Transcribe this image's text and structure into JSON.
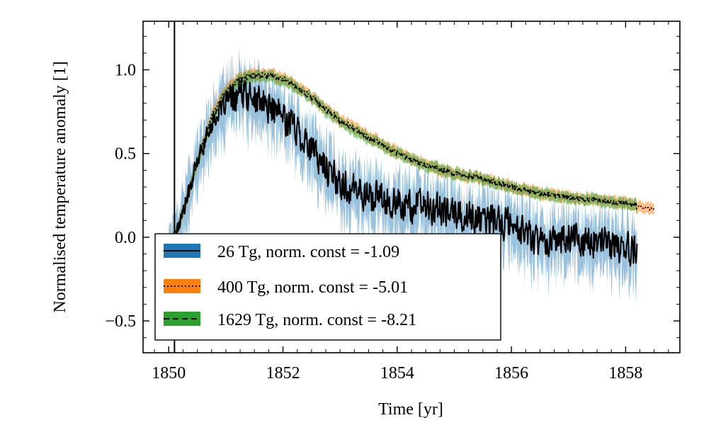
{
  "chart_data": {
    "type": "line",
    "title": "",
    "xlabel": "Time [yr]",
    "ylabel": "Normalised temperature anomaly [1]",
    "xlim": [
      1849.55,
      1858.95
    ],
    "ylim": [
      -0.69,
      1.29
    ],
    "x_ticks": [
      1850,
      1852,
      1854,
      1856,
      1858
    ],
    "x_tick_labels": [
      "1850",
      "1852",
      "1854",
      "1856",
      "1858"
    ],
    "y_ticks": [
      -0.5,
      0.0,
      0.5,
      1.0
    ],
    "y_tick_labels": [
      "−0.5",
      "0.0",
      "0.5",
      "1.0"
    ],
    "vertical_line_x": 1850.1,
    "grid": false,
    "legend_position": "lower-left",
    "series": [
      {
        "name": "26 Tg, norm. const = -1.09",
        "color": "#1f77b4",
        "line_style": "solid",
        "band_noise": "high",
        "x": [
          1850.0,
          1850.1,
          1850.25,
          1850.5,
          1850.75,
          1851.0,
          1851.25,
          1851.5,
          1851.75,
          1852.0,
          1852.25,
          1852.5,
          1852.75,
          1853.0,
          1853.5,
          1854.0,
          1854.5,
          1855.0,
          1855.5,
          1856.0,
          1856.5,
          1857.0,
          1857.5,
          1858.0,
          1858.2
        ],
        "y": [
          -0.05,
          0.0,
          0.15,
          0.45,
          0.68,
          0.8,
          0.85,
          0.83,
          0.78,
          0.72,
          0.65,
          0.52,
          0.42,
          0.32,
          0.25,
          0.2,
          0.18,
          0.14,
          0.1,
          0.08,
          -0.02,
          0.0,
          -0.03,
          -0.06,
          -0.1
        ]
      },
      {
        "name": "400 Tg, norm. const = -5.01",
        "color": "#ff7f0e",
        "line_style": "dotted",
        "band_noise": "low",
        "x": [
          1850.0,
          1850.1,
          1850.25,
          1850.5,
          1850.75,
          1851.0,
          1851.25,
          1851.5,
          1851.75,
          1852.0,
          1852.25,
          1852.5,
          1852.75,
          1853.0,
          1853.5,
          1854.0,
          1854.5,
          1855.0,
          1855.5,
          1856.0,
          1856.5,
          1857.0,
          1857.5,
          1858.0,
          1858.5
        ],
        "y": [
          -0.05,
          0.0,
          0.15,
          0.45,
          0.72,
          0.88,
          0.95,
          0.97,
          0.97,
          0.95,
          0.9,
          0.84,
          0.77,
          0.7,
          0.6,
          0.5,
          0.43,
          0.38,
          0.35,
          0.3,
          0.26,
          0.24,
          0.22,
          0.2,
          0.16
        ]
      },
      {
        "name": "1629 Tg, norm. const = -8.21",
        "color": "#2ca02c",
        "line_style": "dashed",
        "band_noise": "low",
        "x": [
          1850.0,
          1850.1,
          1850.25,
          1850.5,
          1850.75,
          1851.0,
          1851.25,
          1851.5,
          1851.75,
          1852.0,
          1852.25,
          1852.5,
          1852.75,
          1853.0,
          1853.5,
          1854.0,
          1854.5,
          1855.0,
          1855.5,
          1856.0,
          1856.5,
          1857.0,
          1857.5,
          1858.0,
          1858.2
        ],
        "y": [
          -0.05,
          0.0,
          0.15,
          0.45,
          0.7,
          0.86,
          0.94,
          0.96,
          0.96,
          0.94,
          0.89,
          0.83,
          0.76,
          0.69,
          0.59,
          0.5,
          0.43,
          0.38,
          0.35,
          0.3,
          0.26,
          0.24,
          0.22,
          0.2,
          0.19
        ]
      }
    ]
  }
}
